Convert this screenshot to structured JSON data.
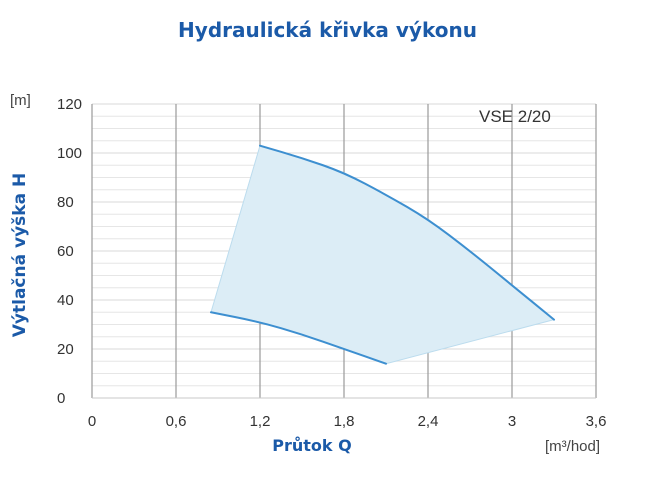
{
  "chart_data": {
    "type": "area",
    "title": "Hydraulická křivka výkonu",
    "xlabel": "Průtok Q",
    "ylabel": "Výtlačná výška H",
    "xunit": "[m³/hod]",
    "yunit": "[m]",
    "xlim": [
      0,
      3.6
    ],
    "ylim": [
      0,
      120
    ],
    "xticks": [
      0,
      0.6,
      1.2,
      1.8,
      2.4,
      3,
      3.6
    ],
    "xtick_labels": [
      "0",
      "0,6",
      "1,2",
      "1,8",
      "2,4",
      "3",
      "3,6"
    ],
    "yticks": [
      0,
      20,
      40,
      60,
      80,
      100,
      120
    ],
    "ytick_labels": [
      "0",
      "20",
      "40",
      "60",
      "80",
      "100",
      "120"
    ],
    "grid": true,
    "series_label": "VSE 2/20",
    "series": [
      {
        "name": "VSE 2/20",
        "upper_curve": {
          "x": [
            1.2,
            1.5,
            1.8,
            2.1,
            2.4,
            2.7,
            3.0,
            3.3
          ],
          "y": [
            103,
            98,
            92,
            83,
            73,
            60,
            46,
            32
          ]
        },
        "lower_curve": {
          "x": [
            0.85,
            1.2,
            1.5,
            1.8,
            2.1
          ],
          "y": [
            35,
            31,
            26,
            20,
            14
          ]
        },
        "fill_color": "#dcedf6",
        "line_color": "#3d8fd0"
      }
    ],
    "colors": {
      "title": "#1b5aa8",
      "grid_major": "#9a9a9a",
      "grid_minor": "#e6e6e6"
    }
  }
}
